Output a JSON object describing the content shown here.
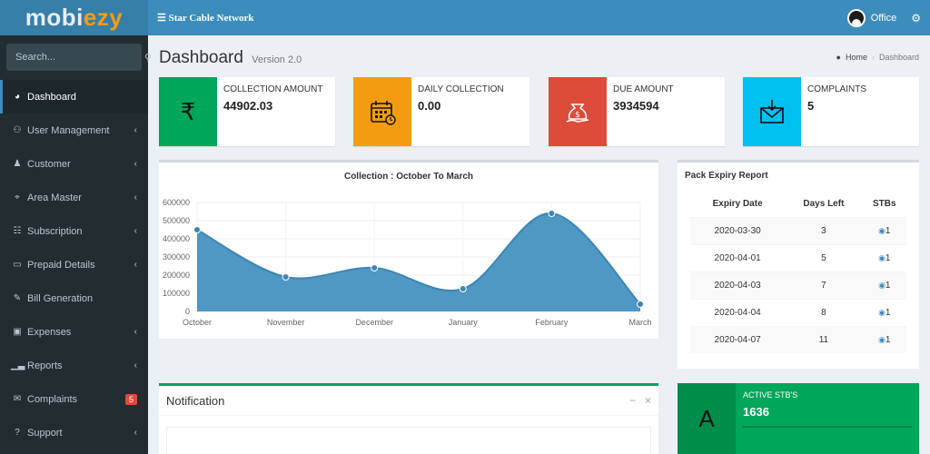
{
  "brand": {
    "part1": "mobi",
    "part2": "ezy"
  },
  "topbar": {
    "network_name": "Star Cable Network",
    "user_name": "Office"
  },
  "search": {
    "placeholder": "Search..."
  },
  "sidebar": {
    "items": [
      {
        "label": "Dashboard",
        "icon": "dashboard-icon",
        "active": true
      },
      {
        "label": "User Management",
        "icon": "users-icon",
        "chevron": true
      },
      {
        "label": "Customer",
        "icon": "user-icon",
        "chevron": true
      },
      {
        "label": "Area Master",
        "icon": "map-marker-icon",
        "chevron": true
      },
      {
        "label": "Subscription",
        "icon": "table-icon",
        "chevron": true
      },
      {
        "label": "Prepaid Details",
        "icon": "card-icon",
        "chevron": true
      },
      {
        "label": "Bill Generation",
        "icon": "edit-icon"
      },
      {
        "label": "Expenses",
        "icon": "money-icon",
        "chevron": true
      },
      {
        "label": "Reports",
        "icon": "chart-icon",
        "chevron": true
      },
      {
        "label": "Complaints",
        "icon": "comments-icon",
        "badge": "5"
      },
      {
        "label": "Support",
        "icon": "question-icon",
        "chevron": true
      }
    ]
  },
  "page": {
    "title": "Dashboard",
    "subtitle": "Version 2.0"
  },
  "breadcrumb": {
    "home": "Home",
    "current": "Dashboard"
  },
  "info_boxes": [
    {
      "label": "COLLECTION AMOUNT",
      "value": "44902.03",
      "color": "#00a65a",
      "icon": "rupee-icon"
    },
    {
      "label": "DAILY COLLECTION",
      "value": "0.00",
      "color": "#f39c12",
      "icon": "calendar-icon"
    },
    {
      "label": "DUE AMOUNT",
      "value": "3934594",
      "color": "#dd4b39",
      "icon": "money-bag-icon"
    },
    {
      "label": "COMPLAINTS",
      "value": "5",
      "color": "#00c0ef",
      "icon": "mail-icon"
    }
  ],
  "chart_data": {
    "type": "area",
    "title": "Collection : October To March",
    "categories": [
      "October",
      "November",
      "December",
      "January",
      "February",
      "March"
    ],
    "values": [
      450000,
      190000,
      240000,
      125000,
      540000,
      40000
    ],
    "yticks": [
      0,
      100000,
      200000,
      300000,
      400000,
      500000,
      600000
    ],
    "ylim": [
      0,
      600000
    ],
    "color": "#3c8dbc",
    "grid": true
  },
  "expiry": {
    "title": "Pack Expiry Report",
    "columns": [
      "Expiry Date",
      "Days Left",
      "STBs"
    ],
    "rows": [
      {
        "date": "2020-03-30",
        "days": "3",
        "stbs": "1"
      },
      {
        "date": "2020-04-01",
        "days": "5",
        "stbs": "1"
      },
      {
        "date": "2020-04-03",
        "days": "7",
        "stbs": "1"
      },
      {
        "date": "2020-04-04",
        "days": "8",
        "stbs": "1"
      },
      {
        "date": "2020-04-07",
        "days": "11",
        "stbs": "1"
      }
    ]
  },
  "notification": {
    "title": "Notification",
    "minimize": "−",
    "close": "×"
  },
  "active_stb": {
    "label": "ACTIVE STB'S",
    "value": "1636",
    "letter": "A"
  }
}
